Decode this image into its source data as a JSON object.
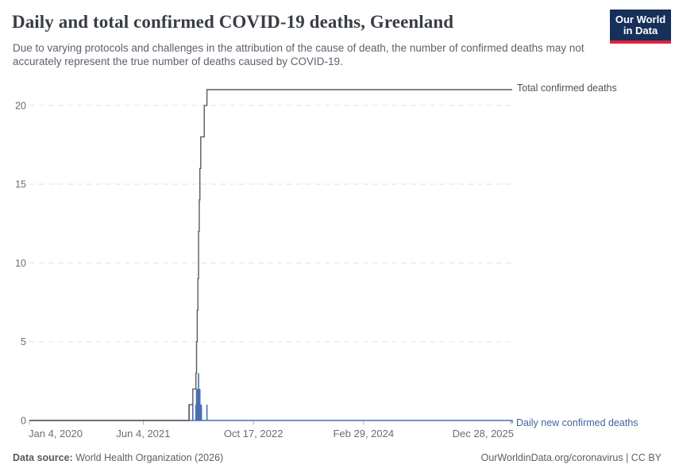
{
  "header": {
    "title": "Daily and total confirmed COVID-19 deaths, Greenland",
    "subtitle": "Due to varying protocols and challenges in the attribution of the cause of death, the number of confirmed deaths may not accurately represent the true number of deaths caused by COVID-19.",
    "logo": {
      "line1": "Our World",
      "line2": "in Data",
      "bg_color": "#16305a",
      "stripe_color": "#e0233c"
    }
  },
  "chart_data": {
    "type": "line",
    "title": "Daily and total confirmed COVID-19 deaths, Greenland",
    "grid": "dashed-horizontal",
    "legend_position": "right-of-line-ends",
    "x_axis": {
      "start_date": "2020-01-04",
      "end_date": "2026-01-04",
      "ticks": [
        {
          "label": "Jan 4, 2020",
          "date": "2020-01-04",
          "align": "start"
        },
        {
          "label": "Jun 4, 2021",
          "date": "2021-06-04",
          "align": "middle"
        },
        {
          "label": "Oct 17, 2022",
          "date": "2022-10-17",
          "align": "middle"
        },
        {
          "label": "Feb 29, 2024",
          "date": "2024-02-29",
          "align": "middle"
        },
        {
          "label": "Dec 28, 2025",
          "date": "2025-12-28",
          "align": "end"
        }
      ]
    },
    "y_axis": {
      "ticks": [
        0,
        5,
        10,
        15,
        20
      ],
      "range": [
        0,
        21
      ]
    },
    "series": [
      {
        "name": "Total confirmed deaths",
        "type": "step_line",
        "color": "#5a5a5a",
        "final_value": 21,
        "points": [
          [
            "2020-01-04",
            0
          ],
          [
            "2021-12-29",
            1
          ],
          [
            "2022-01-15",
            2
          ],
          [
            "2022-01-29",
            3
          ],
          [
            "2022-02-01",
            5
          ],
          [
            "2022-02-04",
            7
          ],
          [
            "2022-02-07",
            9
          ],
          [
            "2022-02-10",
            12
          ],
          [
            "2022-02-13",
            14
          ],
          [
            "2022-02-16",
            16
          ],
          [
            "2022-02-20",
            18
          ],
          [
            "2022-03-08",
            20
          ],
          [
            "2022-03-20",
            21
          ]
        ]
      },
      {
        "name": "Daily new confirmed deaths",
        "type": "bar",
        "color": "#4c6cb0",
        "points": [
          [
            "2021-12-29",
            1
          ],
          [
            "2022-01-15",
            1
          ],
          [
            "2022-01-29",
            1
          ],
          [
            "2022-02-01",
            2
          ],
          [
            "2022-02-04",
            2
          ],
          [
            "2022-02-07",
            2
          ],
          [
            "2022-02-10",
            3
          ],
          [
            "2022-02-12",
            2
          ],
          [
            "2022-02-14",
            2
          ],
          [
            "2022-02-16",
            2
          ],
          [
            "2022-02-19",
            1
          ],
          [
            "2022-02-23",
            1
          ],
          [
            "2022-03-20",
            1
          ]
        ]
      }
    ],
    "colors": {
      "gridline": "#e3e3e3",
      "tick_mark": "#b0b0b0",
      "tick_text": "#6d6d6d"
    }
  },
  "footer": {
    "source_label": "Data source:",
    "source_value": "World Health Organization (2026)",
    "credit": "OurWorldinData.org/coronavirus | CC BY"
  }
}
